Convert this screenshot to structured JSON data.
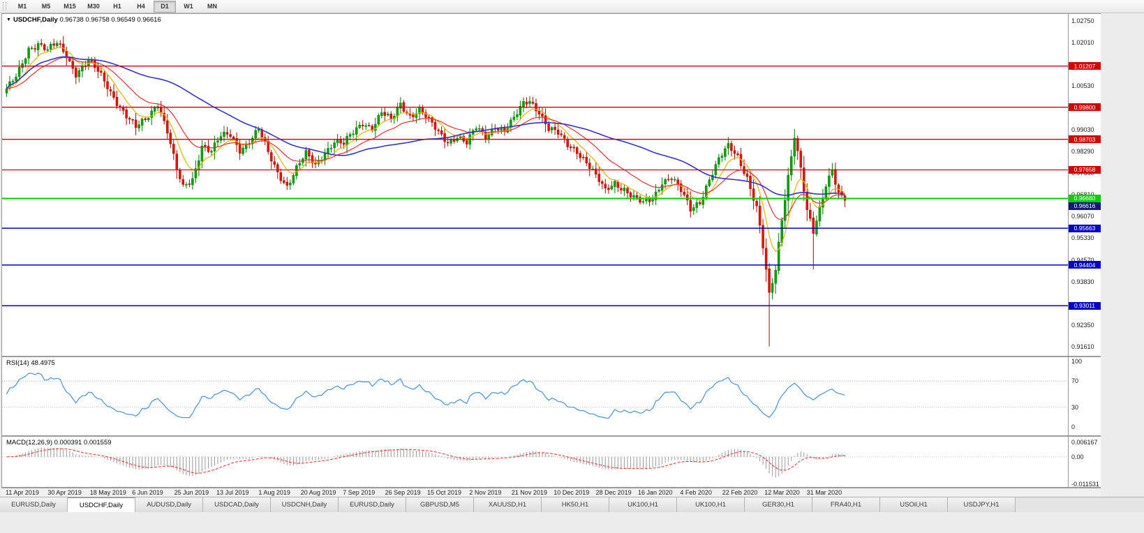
{
  "toolbar": {
    "timeframes": [
      "M1",
      "M5",
      "M15",
      "M30",
      "H1",
      "H4",
      "D1",
      "W1",
      "MN"
    ],
    "active": "D1"
  },
  "chart": {
    "title": "USDCHF,Daily",
    "ohlc": "0.96738 0.96758 0.96549 0.96616",
    "collapse_arrow": "▼",
    "colors": {
      "up": "#00A600",
      "up_dark": "#007400",
      "down": "#E41400",
      "down_dark": "#9E0C00",
      "ma_fast": "#E8B400",
      "ma_mid": "#E03232",
      "ma_slow": "#3434C8",
      "resistance": "#D40000",
      "support": "#0000C8",
      "pivot": "#00D200",
      "bid_bg": "#15157D",
      "rsi": "#4A90D2",
      "macd_hist": "#9A9A9A",
      "macd_signal": "#E03232"
    },
    "scale_ticks": [
      "1.02750",
      "1.02010",
      "1.00530",
      "0.99030",
      "0.98290",
      "0.97550",
      "0.96810",
      "0.96070",
      "0.95330",
      "0.94570",
      "0.93830",
      "0.92350",
      "0.91610"
    ],
    "levels": {
      "resistance": [
        {
          "price": 1.01207,
          "label": "1.01207"
        },
        {
          "price": 0.998,
          "label": "0.99800"
        },
        {
          "price": 0.98703,
          "label": "0.98703"
        },
        {
          "price": 0.97658,
          "label": "0.97658"
        }
      ],
      "support": [
        {
          "price": 0.95663,
          "label": "0.95663"
        },
        {
          "price": 0.94404,
          "label": "0.94404"
        },
        {
          "price": 0.93011,
          "label": "0.93011"
        }
      ],
      "pivot": {
        "price": 0.9668,
        "label": "0.96680"
      },
      "bid": {
        "price": 0.96616,
        "label": "0.96616"
      }
    }
  },
  "chart_data": {
    "type": "candlestick",
    "symbol": "USDCHF",
    "timeframe": "Daily",
    "axis": {
      "max": 1.0275,
      "min": 0.9161
    },
    "x_labels": [
      "11 Apr 2019",
      "30 Apr 2019",
      "18 May 2019",
      "6 Jun 2019",
      "25 Jun 2019",
      "13 Jul 2019",
      "1 Aug 2019",
      "20 Aug 2019",
      "7 Sep 2019",
      "26 Sep 2019",
      "15 Oct 2019",
      "2 Nov 2019",
      "21 Nov 2019",
      "10 Dec 2019",
      "28 Dec 2019",
      "16 Jan 2020",
      "4 Feb 2020",
      "22 Feb 2020",
      "12 Mar 2020",
      "31 Mar 2020"
    ],
    "num_candles": 267,
    "last_close": 0.96616,
    "close_waypoints": [
      [
        0,
        1.0035
      ],
      [
        3,
        1.008
      ],
      [
        7,
        1.0185
      ],
      [
        10,
        1.02
      ],
      [
        13,
        1.017
      ],
      [
        16,
        1.0195
      ],
      [
        19,
        1.016
      ],
      [
        22,
        1.01
      ],
      [
        26,
        1.0135
      ],
      [
        30,
        1.0085
      ],
      [
        34,
        1.002
      ],
      [
        38,
        0.995
      ],
      [
        41,
        0.9905
      ],
      [
        44,
        0.9935
      ],
      [
        48,
        1.0
      ],
      [
        51,
        0.99
      ],
      [
        54,
        0.976
      ],
      [
        56,
        0.97
      ],
      [
        59,
        0.9735
      ],
      [
        62,
        0.9855
      ],
      [
        65,
        0.983
      ],
      [
        68,
        0.9875
      ],
      [
        71,
        0.9885
      ],
      [
        74,
        0.984
      ],
      [
        77,
        0.9865
      ],
      [
        80,
        0.99
      ],
      [
        83,
        0.982
      ],
      [
        86,
        0.976
      ],
      [
        89,
        0.9715
      ],
      [
        92,
        0.977
      ],
      [
        95,
        0.9815
      ],
      [
        98,
        0.978
      ],
      [
        101,
        0.983
      ],
      [
        104,
        0.9865
      ],
      [
        107,
        0.985
      ],
      [
        110,
        0.989
      ],
      [
        113,
        0.993
      ],
      [
        116,
        0.9915
      ],
      [
        119,
        0.996
      ],
      [
        122,
        0.993
      ],
      [
        125,
        0.999
      ],
      [
        128,
        0.9955
      ],
      [
        131,
        0.9975
      ],
      [
        134,
        0.993
      ],
      [
        137,
        0.989
      ],
      [
        140,
        0.9865
      ],
      [
        143,
        0.9885
      ],
      [
        146,
        0.9855
      ],
      [
        149,
        0.9905
      ],
      [
        152,
        0.988
      ],
      [
        155,
        0.992
      ],
      [
        158,
        0.99
      ],
      [
        161,
        0.9935
      ],
      [
        164,
        0.999
      ],
      [
        166,
        1.0005
      ],
      [
        169,
        0.997
      ],
      [
        172,
        0.9905
      ],
      [
        175,
        0.9885
      ],
      [
        178,
        0.985
      ],
      [
        181,
        0.9835
      ],
      [
        184,
        0.9795
      ],
      [
        187,
        0.974
      ],
      [
        190,
        0.969
      ],
      [
        193,
        0.9725
      ],
      [
        196,
        0.9705
      ],
      [
        199,
        0.967
      ],
      [
        202,
        0.9645
      ],
      [
        205,
        0.9665
      ],
      [
        208,
        0.973
      ],
      [
        211,
        0.9745
      ],
      [
        214,
        0.969
      ],
      [
        217,
        0.9625
      ],
      [
        220,
        0.966
      ],
      [
        223,
        0.974
      ],
      [
        226,
        0.98
      ],
      [
        229,
        0.984
      ],
      [
        232,
        0.981
      ],
      [
        235,
        0.9745
      ],
      [
        238,
        0.964
      ],
      [
        240,
        0.95
      ],
      [
        242,
        0.933
      ],
      [
        244,
        0.942
      ],
      [
        246,
        0.96
      ],
      [
        248,
        0.975
      ],
      [
        250,
        0.989
      ],
      [
        252,
        0.977
      ],
      [
        254,
        0.962
      ],
      [
        256,
        0.9545
      ],
      [
        258,
        0.963
      ],
      [
        260,
        0.972
      ],
      [
        262,
        0.9775
      ],
      [
        264,
        0.969
      ],
      [
        266,
        0.96616
      ]
    ],
    "wick_overrides": [
      {
        "i": 242,
        "low": 0.9162
      },
      {
        "i": 250,
        "high": 0.9905
      },
      {
        "i": 256,
        "low": 0.9425
      }
    ],
    "moving_averages": [
      {
        "period": 8,
        "type": "ema",
        "color_key": "ma_fast"
      },
      {
        "period": 21,
        "type": "ema",
        "color_key": "ma_mid"
      },
      {
        "period": 55,
        "type": "sma",
        "color_key": "ma_slow"
      }
    ],
    "rsi": {
      "label": "RSI(14) 48.4975",
      "period": 14,
      "scale": [
        "100",
        "70",
        "30",
        "0"
      ],
      "current": 48.4975
    },
    "macd": {
      "label": "MACD(12,26,9) 0.000391 0.001559",
      "fast": 12,
      "slow": 26,
      "signal": 9,
      "scale": [
        "0.006167",
        "0.00",
        "-0.011531"
      ],
      "current": [
        0.000391,
        0.001559
      ]
    }
  },
  "tabs": [
    {
      "label": "EURUSD,Daily",
      "active": false
    },
    {
      "label": "USDCHF,Daily",
      "active": true
    },
    {
      "label": "AUDUSD,Daily",
      "active": false
    },
    {
      "label": "USDCAD,Daily",
      "active": false
    },
    {
      "label": "USDCNH,Daily",
      "active": false
    },
    {
      "label": "EURUSD,Daily",
      "active": false
    },
    {
      "label": "GBPUSD,M5",
      "active": false
    },
    {
      "label": "XAUUSD,H1",
      "active": false
    },
    {
      "label": "HK50,H1",
      "active": false
    },
    {
      "label": "UK100,H1",
      "active": false
    },
    {
      "label": "UK100,H1",
      "active": false
    },
    {
      "label": "GER30,H1",
      "active": false
    },
    {
      "label": "FRA40,H1",
      "active": false
    },
    {
      "label": "USOil,H1",
      "active": false
    },
    {
      "label": "USDJPY,H1",
      "active": false
    }
  ]
}
